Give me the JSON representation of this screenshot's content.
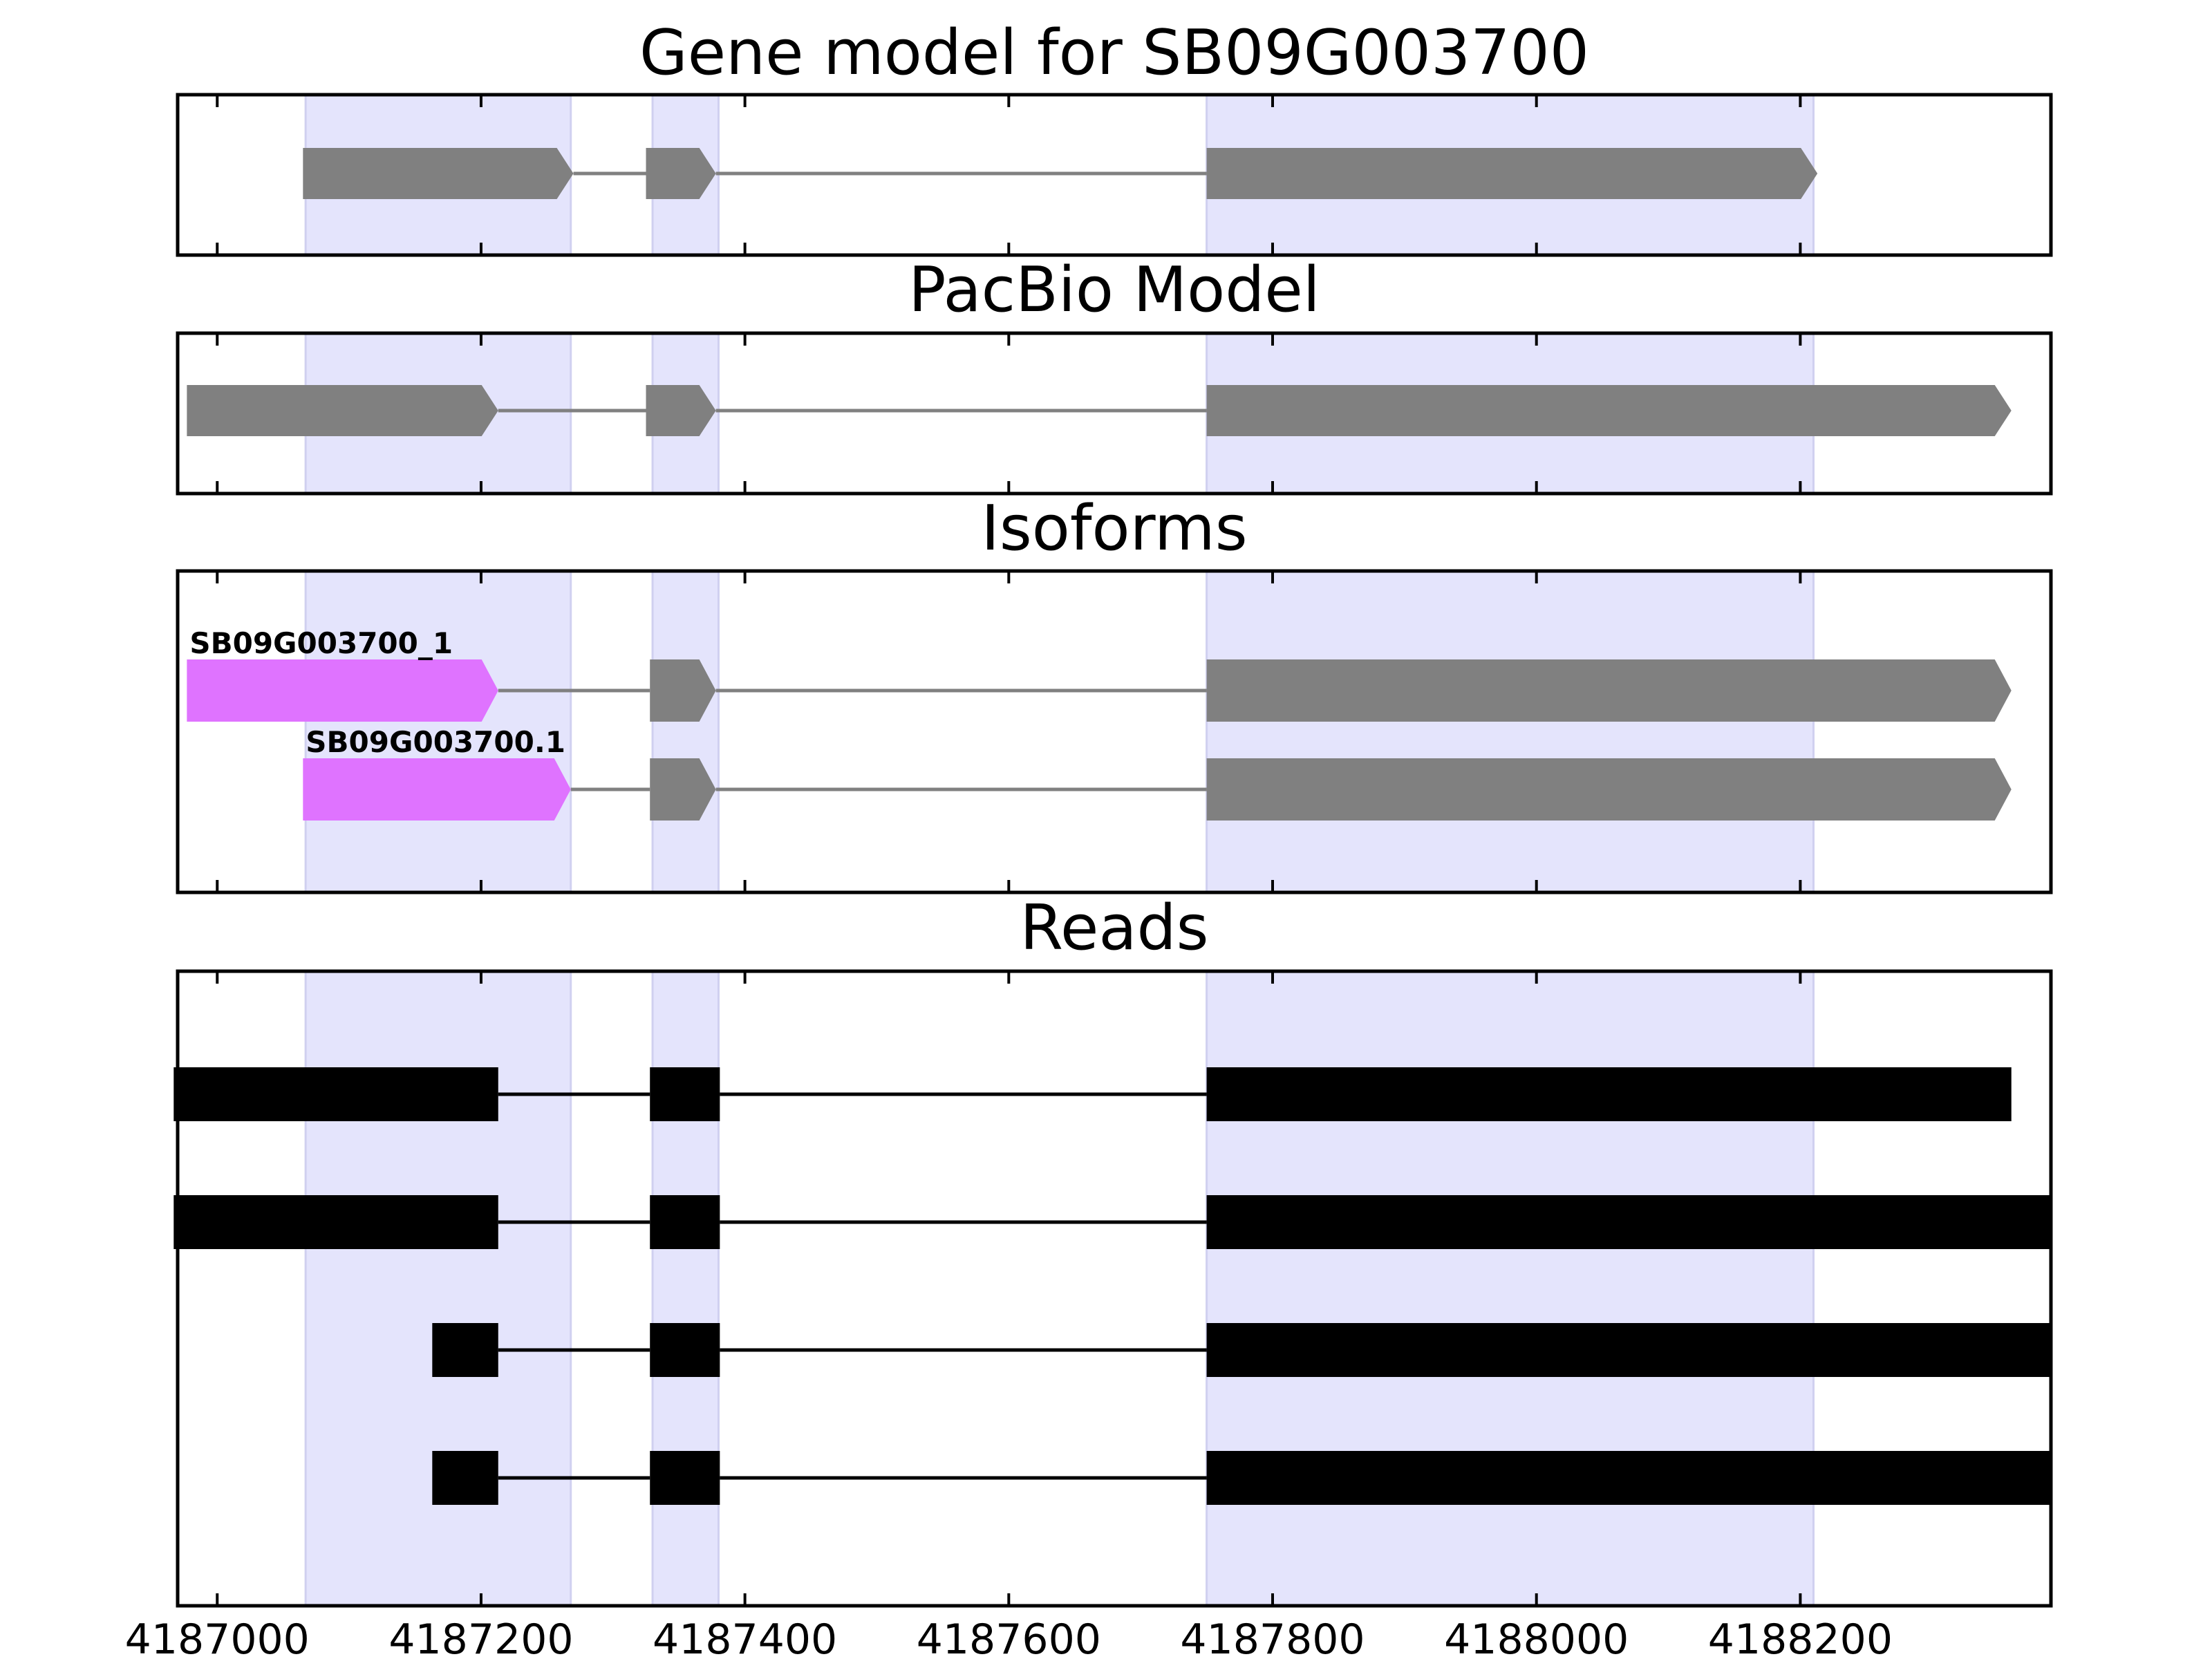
{
  "panels": {
    "gene_model": {
      "title": "Gene model for SB09G003700"
    },
    "pacbio": {
      "title": "PacBio Model"
    },
    "isoforms": {
      "title": "Isoforms"
    },
    "reads": {
      "title": "Reads"
    }
  },
  "chart_data": {
    "type": "gene-structure",
    "x_range": [
      4186970,
      4188390
    ],
    "x_ticks": [
      "4187000",
      "4187200",
      "4187400",
      "4187600",
      "4187800",
      "4188000",
      "4188200"
    ],
    "highlight_regions": [
      [
        4187067,
        4187268
      ],
      [
        4187330,
        4187380
      ],
      [
        4187750,
        4188210
      ]
    ],
    "gene_model": {
      "exons": [
        [
          4187065,
          4187270,
          "arrow"
        ],
        [
          4187325,
          4187378,
          "arrow"
        ],
        [
          4187750,
          4188213,
          "arrow"
        ]
      ]
    },
    "pacbio_model": {
      "exons": [
        [
          4186977,
          4187213,
          "arrow"
        ],
        [
          4187325,
          4187378,
          "arrow"
        ],
        [
          4187750,
          4188360,
          "arrow"
        ]
      ]
    },
    "isoforms": [
      {
        "label": "SB09G003700_1",
        "exons": [
          [
            4186977,
            4187213,
            "arrow"
          ],
          [
            4187328,
            4187378,
            "arrow"
          ],
          [
            4187750,
            4188360,
            "arrow"
          ]
        ]
      },
      {
        "label": "SB09G003700.1",
        "exons": [
          [
            4187065,
            4187268,
            "arrow"
          ],
          [
            4187328,
            4187378,
            "arrow"
          ],
          [
            4187750,
            4188360,
            "arrow"
          ]
        ]
      }
    ],
    "reads": [
      {
        "exons": [
          [
            4186967,
            4187213
          ],
          [
            4187328,
            4187381
          ],
          [
            4187750,
            4188360
          ]
        ]
      },
      {
        "exons": [
          [
            4186967,
            4187213
          ],
          [
            4187328,
            4187381
          ],
          [
            4187750,
            4188390
          ]
        ]
      },
      {
        "exons": [
          [
            4187163,
            4187213
          ],
          [
            4187328,
            4187381
          ],
          [
            4187750,
            4188390
          ]
        ]
      },
      {
        "exons": [
          [
            4187163,
            4187213
          ],
          [
            4187328,
            4187381
          ],
          [
            4187750,
            4188390
          ]
        ]
      }
    ],
    "colors": {
      "highlight": "#e4e4fc",
      "highlight_edge": "#d0d0f0",
      "model_exon": "#808080",
      "intron": "#808080",
      "isoform_first_exon": "#df73ff",
      "read": "#000000",
      "frame": "#000000"
    }
  }
}
